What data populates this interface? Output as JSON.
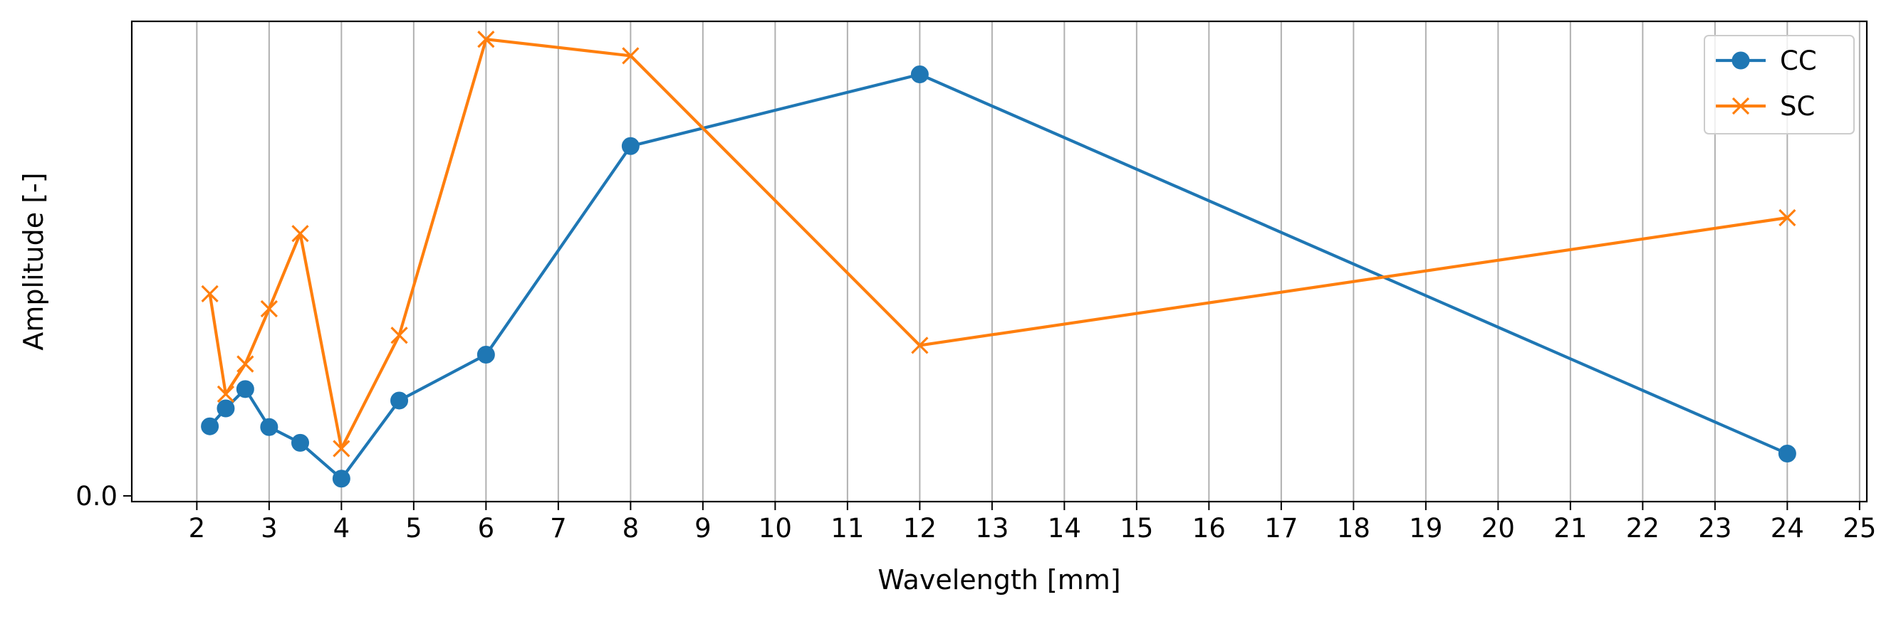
{
  "chart_data": {
    "type": "line",
    "xlabel": "Wavelength [mm]",
    "ylabel": "Amplitude [-]",
    "xlim": [
      1.1,
      25.1
    ],
    "ylim": [
      -0.008,
      0.662
    ],
    "x_ticks": [
      2,
      3,
      4,
      5,
      6,
      7,
      8,
      9,
      10,
      11,
      12,
      13,
      14,
      15,
      16,
      17,
      18,
      19,
      20,
      21,
      22,
      23,
      24,
      25
    ],
    "x_tick_labels": [
      "2",
      "3",
      "4",
      "5",
      "6",
      "7",
      "8",
      "9",
      "10",
      "11",
      "12",
      "13",
      "14",
      "15",
      "16",
      "17",
      "18",
      "19",
      "20",
      "21",
      "22",
      "23",
      "24",
      "25"
    ],
    "y_ticks": [
      0.0
    ],
    "y_tick_labels": [
      "0.0"
    ],
    "grid": "x",
    "legend_position": "top-right",
    "series": [
      {
        "name": "CC",
        "color": "#1f77b4",
        "marker": "circle",
        "x": [
          2.18,
          2.4,
          2.67,
          3.0,
          3.43,
          4.0,
          4.8,
          6.0,
          8.0,
          12.0,
          24.0
        ],
        "y": [
          0.097,
          0.122,
          0.149,
          0.096,
          0.074,
          0.024,
          0.133,
          0.197,
          0.488,
          0.588,
          0.059
        ]
      },
      {
        "name": "SC",
        "color": "#ff7f0e",
        "marker": "x",
        "x": [
          2.18,
          2.4,
          2.67,
          3.0,
          3.43,
          4.0,
          4.8,
          6.0,
          8.0,
          12.0,
          24.0
        ],
        "y": [
          0.282,
          0.142,
          0.184,
          0.261,
          0.366,
          0.066,
          0.224,
          0.637,
          0.614,
          0.21,
          0.388
        ]
      }
    ]
  }
}
